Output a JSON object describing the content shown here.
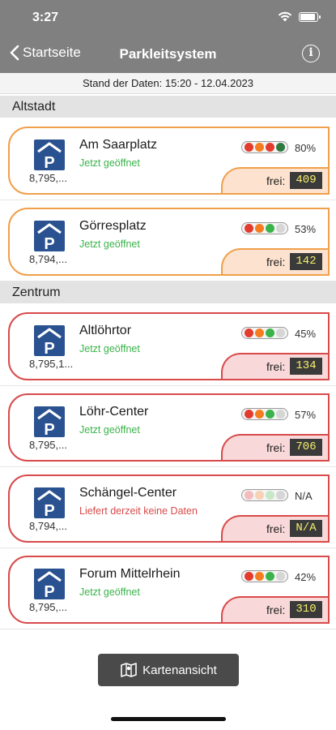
{
  "status_bar": {
    "time": "3:27"
  },
  "nav": {
    "back_label": "Startseite",
    "title": "Parkleitsystem"
  },
  "data_stand": "Stand der Daten: 15:20 - 12.04.2023",
  "colors": {
    "open_green": "#3bb34a",
    "no_data_red": "#d94a4a",
    "orange_border": "#f0a04a",
    "red_border": "#d94a4a",
    "p_sign_blue": "#2a5290"
  },
  "sections": [
    {
      "title": "Altstadt",
      "lots": [
        {
          "name": "Am Saarplatz",
          "coords": "8,795,...",
          "status": "Jetzt geöffnet",
          "occupancy": "80%",
          "free_label": "frei:",
          "free": "409",
          "lights": [
            "#e33b2e",
            "#f57d20",
            "#e33b2e",
            "#2e7a3e"
          ]
        },
        {
          "name": "Görresplatz",
          "coords": "8,794,...",
          "status": "Jetzt geöffnet",
          "occupancy": "53%",
          "free_label": "frei:",
          "free": "142",
          "lights": [
            "#e33b2e",
            "#f57d20",
            "#3bb34a",
            "#d6d6d6"
          ]
        }
      ]
    },
    {
      "title": "Zentrum",
      "lots": [
        {
          "name": "Altlöhrtor",
          "coords": "8,795,1...",
          "status": "Jetzt geöffnet",
          "occupancy": "45%",
          "free_label": "frei:",
          "free": "134",
          "lights": [
            "#e33b2e",
            "#f57d20",
            "#3bb34a",
            "#d6d6d6"
          ]
        },
        {
          "name": "Löhr-Center",
          "coords": "8,795,...",
          "status": "Jetzt geöffnet",
          "occupancy": "57%",
          "free_label": "frei:",
          "free": "706",
          "lights": [
            "#e33b2e",
            "#f57d20",
            "#3bb34a",
            "#d6d6d6"
          ]
        },
        {
          "name": "Schängel-Center",
          "coords": "8,794,...",
          "status": "Liefert derzeit keine Daten",
          "occupancy": "N/A",
          "free_label": "frei:",
          "free": "N/A",
          "lights": [
            "#f4bcbc",
            "#f7d2b4",
            "#c6e8c6",
            "#d6d6d6"
          ]
        },
        {
          "name": "Forum Mittelrhein",
          "coords": "8,795,...",
          "status": "Jetzt geöffnet",
          "occupancy": "42%",
          "free_label": "frei:",
          "free": "310",
          "lights": [
            "#e33b2e",
            "#f57d20",
            "#3bb34a",
            "#d6d6d6"
          ]
        }
      ]
    }
  ],
  "map_button": {
    "label": "Kartenansicht",
    "icon": "map-icon"
  }
}
